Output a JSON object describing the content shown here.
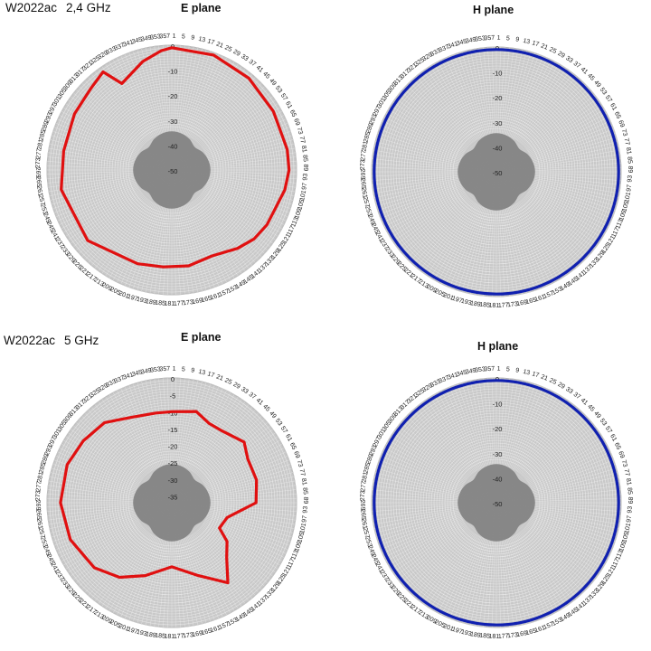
{
  "sections": [
    {
      "model": "W2022ac",
      "frequency": "2,4 GHz"
    },
    {
      "model": "W2022ac",
      "frequency": "5 GHz"
    }
  ],
  "chart_data": [
    {
      "type": "polar-line",
      "title": "E plane",
      "angle_labels": [
        "1",
        "5",
        "9",
        "13",
        "17",
        "21",
        "25",
        "29",
        "33",
        "37",
        "41",
        "45",
        "49",
        "53",
        "57",
        "61",
        "65",
        "69",
        "73",
        "77",
        "81",
        "85",
        "89",
        "93",
        "97",
        "101",
        "105",
        "109",
        "113",
        "117",
        "121",
        "125",
        "129",
        "133",
        "137",
        "141",
        "145",
        "149",
        "153",
        "157",
        "161",
        "165",
        "169",
        "173",
        "177",
        "181",
        "185",
        "189",
        "193",
        "197",
        "201",
        "205",
        "209",
        "213",
        "217",
        "221",
        "225",
        "229",
        "233",
        "237",
        "241",
        "245",
        "249",
        "253",
        "257",
        "261",
        "265",
        "269",
        "273",
        "277",
        "281",
        "285",
        "289",
        "293",
        "297",
        "301",
        "305",
        "309",
        "313",
        "317",
        "321",
        "325",
        "329",
        "333",
        "337",
        "341",
        "345",
        "349",
        "353",
        "357"
      ],
      "radial_labels": [
        "0",
        "-10",
        "-20",
        "-30",
        "-40",
        "-50"
      ],
      "r_range": [
        -50,
        0
      ],
      "series": [
        {
          "color": "#e01010",
          "angles": [
            0,
            20,
            40,
            60,
            80,
            90,
            100,
            120,
            130,
            140,
            155,
            170,
            185,
            200,
            230,
            260,
            280,
            300,
            315,
            325,
            330,
            345,
            355
          ],
          "values": [
            -1,
            -1,
            -2,
            -3,
            -3,
            -3,
            -4,
            -6,
            -7,
            -9,
            -12,
            -11,
            -11,
            -10,
            -6,
            -5,
            -6,
            -5,
            -4,
            -2,
            -10,
            -5,
            -2
          ]
        }
      ]
    },
    {
      "type": "polar-line",
      "title": "H plane",
      "angle_labels": [
        "1",
        "5",
        "9",
        "13",
        "17",
        "21",
        "25",
        "29",
        "33",
        "37",
        "41",
        "45",
        "49",
        "53",
        "57",
        "61",
        "65",
        "69",
        "73",
        "77",
        "81",
        "85",
        "89",
        "93",
        "97",
        "101",
        "105",
        "109",
        "113",
        "117",
        "121",
        "125",
        "129",
        "133",
        "137",
        "141",
        "145",
        "149",
        "153",
        "157",
        "161",
        "165",
        "169",
        "173",
        "177",
        "181",
        "185",
        "189",
        "193",
        "197",
        "201",
        "205",
        "209",
        "213",
        "217",
        "221",
        "225",
        "229",
        "233",
        "237",
        "241",
        "245",
        "249",
        "253",
        "257",
        "261",
        "265",
        "269",
        "273",
        "277",
        "281",
        "285",
        "289",
        "293",
        "297",
        "301",
        "305",
        "309",
        "313",
        "317",
        "321",
        "325",
        "329",
        "333",
        "337",
        "341",
        "345",
        "349",
        "353",
        "357"
      ],
      "radial_labels": [
        "0",
        "-10",
        "-20",
        "-30",
        "-40",
        "-50"
      ],
      "r_range": [
        -50,
        0
      ],
      "series": [
        {
          "color": "#1020b0",
          "angles": [
            0,
            90,
            180,
            270
          ],
          "values": [
            -1,
            -1,
            -1,
            -1
          ]
        }
      ]
    },
    {
      "type": "polar-line",
      "title": "E plane",
      "angle_labels": [
        "1",
        "5",
        "9",
        "13",
        "17",
        "21",
        "25",
        "29",
        "33",
        "37",
        "41",
        "45",
        "49",
        "53",
        "57",
        "61",
        "65",
        "69",
        "73",
        "77",
        "81",
        "85",
        "89",
        "93",
        "97",
        "101",
        "105",
        "109",
        "113",
        "117",
        "121",
        "125",
        "129",
        "133",
        "137",
        "141",
        "145",
        "149",
        "153",
        "157",
        "161",
        "165",
        "169",
        "173",
        "177",
        "181",
        "185",
        "189",
        "193",
        "197",
        "201",
        "205",
        "209",
        "213",
        "217",
        "221",
        "225",
        "229",
        "233",
        "237",
        "241",
        "245",
        "249",
        "253",
        "257",
        "261",
        "265",
        "269",
        "273",
        "277",
        "281",
        "285",
        "289",
        "293",
        "297",
        "301",
        "305",
        "309",
        "313",
        "317",
        "321",
        "325",
        "329",
        "333",
        "337",
        "341",
        "345",
        "349",
        "353",
        "357"
      ],
      "radial_labels": [
        "0",
        "-5",
        "-10",
        "-15",
        "-20",
        "-25",
        "-30",
        "-35"
      ],
      "r_range": [
        -37,
        0
      ],
      "series": [
        {
          "color": "#e01010",
          "angles": [
            0,
            15,
            25,
            35,
            50,
            60,
            75,
            90,
            105,
            118,
            125,
            135,
            145,
            160,
            180,
            200,
            215,
            230,
            250,
            270,
            290,
            305,
            320,
            335,
            350
          ],
          "values": [
            -10,
            -9,
            -11,
            -11,
            -9,
            -11,
            -11,
            -12,
            -20,
            -21,
            -17,
            -14,
            -8,
            -14,
            -18,
            -14,
            -10,
            -7,
            -5,
            -4,
            -4,
            -5,
            -6,
            -9,
            -10
          ]
        }
      ]
    },
    {
      "type": "polar-line",
      "title": "H plane",
      "angle_labels": [
        "1",
        "5",
        "9",
        "13",
        "17",
        "21",
        "25",
        "29",
        "33",
        "37",
        "41",
        "45",
        "49",
        "53",
        "57",
        "61",
        "65",
        "69",
        "73",
        "77",
        "81",
        "85",
        "89",
        "93",
        "97",
        "101",
        "105",
        "109",
        "113",
        "117",
        "121",
        "125",
        "129",
        "133",
        "137",
        "141",
        "145",
        "149",
        "153",
        "157",
        "161",
        "165",
        "169",
        "173",
        "177",
        "181",
        "185",
        "189",
        "193",
        "197",
        "201",
        "205",
        "209",
        "213",
        "217",
        "221",
        "225",
        "229",
        "233",
        "237",
        "241",
        "245",
        "249",
        "253",
        "257",
        "261",
        "265",
        "269",
        "273",
        "277",
        "281",
        "285",
        "289",
        "293",
        "297",
        "301",
        "305",
        "309",
        "313",
        "317",
        "321",
        "325",
        "329",
        "333",
        "337",
        "341",
        "345",
        "349",
        "353",
        "357"
      ],
      "radial_labels": [
        "0",
        "-10",
        "-20",
        "-30",
        "-40",
        "-50"
      ],
      "r_range": [
        -50,
        0
      ],
      "series": [
        {
          "color": "#1020b0",
          "angles": [
            0,
            90,
            180,
            270
          ],
          "values": [
            -1,
            -1,
            -1,
            -1
          ]
        }
      ]
    }
  ]
}
